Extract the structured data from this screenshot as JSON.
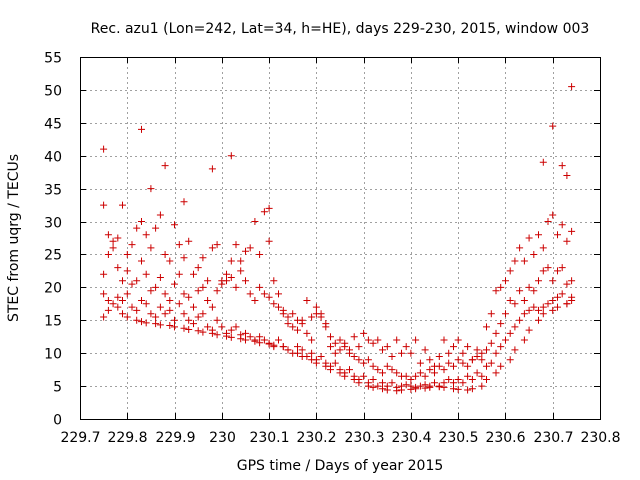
{
  "chart_data": {
    "type": "scatter",
    "title": "Rec. azu1 (Lon=242, Lat=34, h=HE), days 229-230, 2015, window 003",
    "xlabel": "GPS time / Days of year 2015",
    "ylabel": "STEC from uqrg / TECUs",
    "xlim": [
      229.7,
      230.8
    ],
    "ylim": [
      0,
      55
    ],
    "xticks": [
      "229.7",
      "229.8",
      "229.9",
      "230",
      "230.1",
      "230.2",
      "230.3",
      "230.4",
      "230.5",
      "230.6",
      "230.7",
      "230.8"
    ],
    "yticks": [
      "0",
      "5",
      "10",
      "15",
      "20",
      "25",
      "30",
      "35",
      "40",
      "45",
      "50",
      "55"
    ],
    "grid": true,
    "marker": "+",
    "color": "#cc0000",
    "series": [
      {
        "x": [
          229.75,
          229.76,
          229.78,
          229.79,
          229.8,
          229.82,
          229.83,
          229.84,
          229.86,
          229.87,
          229.89,
          229.9,
          229.92,
          229.93,
          229.95,
          229.96,
          229.98,
          229.99,
          230.01,
          230.02,
          230.04,
          230.05,
          230.07,
          230.08,
          230.1,
          230.11,
          230.13,
          230.14,
          230.16,
          230.17,
          230.19,
          230.2,
          230.22,
          230.23,
          230.25,
          230.26,
          230.28,
          230.29,
          230.31,
          230.32,
          230.34,
          230.35,
          230.37,
          230.38,
          230.4,
          230.41,
          230.43,
          230.44,
          230.46,
          230.47,
          230.49,
          230.5,
          230.52,
          230.53,
          230.55,
          230.56,
          230.58,
          230.59,
          230.61,
          230.62,
          230.64,
          230.65,
          230.67,
          230.68,
          230.7,
          230.71,
          230.73,
          230.74
        ],
        "y": [
          15.5,
          16.5,
          17,
          16,
          15.5,
          15,
          14.8,
          14.6,
          14.5,
          14.3,
          14.2,
          14,
          13.8,
          13.6,
          13.4,
          13.2,
          13,
          12.8,
          12.6,
          12.4,
          12.2,
          12,
          11.8,
          11.6,
          11.4,
          11.2,
          11,
          10.5,
          10,
          9.5,
          9,
          8.5,
          8,
          7.5,
          7,
          6.5,
          6,
          5.5,
          5,
          4.8,
          4.6,
          4.4,
          4.3,
          4.4,
          4.5,
          4.6,
          4.7,
          4.8,
          4.9,
          4.8,
          4.6,
          4.5,
          4.4,
          4.6,
          5,
          6,
          7,
          8,
          9,
          10.5,
          12,
          13.5,
          15,
          16,
          16.5,
          17,
          17.5,
          18.5
        ]
      },
      {
        "x": [
          229.75,
          229.76,
          229.77,
          229.78,
          229.79,
          229.8,
          229.81,
          229.82,
          229.83,
          229.84,
          229.85,
          229.86,
          229.87,
          229.88,
          229.89,
          229.9,
          229.91,
          229.92,
          229.93,
          229.94,
          229.95,
          229.96,
          229.97,
          229.98,
          229.99,
          230.0,
          230.01,
          230.02,
          230.03,
          230.04,
          230.05,
          230.06,
          230.07,
          230.08,
          230.09,
          230.1,
          230.11,
          230.12,
          230.13,
          230.14,
          230.15,
          230.16,
          230.17,
          230.18,
          230.19,
          230.2,
          230.21,
          230.22,
          230.23,
          230.24,
          230.25,
          230.26,
          230.27,
          230.28,
          230.29,
          230.3,
          230.31,
          230.32,
          230.33,
          230.34,
          230.35,
          230.36,
          230.37,
          230.38,
          230.39,
          230.4,
          230.41,
          230.42,
          230.43,
          230.44,
          230.45,
          230.46,
          230.47,
          230.48,
          230.49,
          230.5,
          230.51,
          230.52,
          230.53,
          230.54,
          230.55,
          230.56,
          230.57,
          230.58,
          230.59,
          230.6,
          230.61,
          230.62,
          230.63,
          230.64,
          230.65,
          230.66,
          230.67,
          230.68,
          230.69,
          230.7,
          230.71,
          230.72,
          230.73,
          230.74
        ],
        "y": [
          19,
          18,
          17.5,
          18.5,
          18,
          19,
          17,
          16.5,
          18,
          17.5,
          16,
          15.5,
          17,
          16,
          16.5,
          15,
          17.5,
          16,
          15,
          14.5,
          15.5,
          16,
          14,
          13.5,
          15,
          14,
          13,
          13.5,
          14,
          12.8,
          13,
          12.5,
          12,
          12.5,
          12,
          11.5,
          11,
          12,
          11,
          10.5,
          10,
          11,
          10.5,
          9.5,
          10,
          9,
          9.5,
          8.5,
          8,
          8.5,
          7.5,
          7,
          7.5,
          6.5,
          6,
          6.5,
          5.5,
          6,
          5,
          5.5,
          5,
          5.5,
          4.8,
          5,
          5.2,
          5,
          4.8,
          5,
          5.2,
          5,
          5.5,
          5,
          5.5,
          6,
          5.5,
          6,
          5.5,
          6.5,
          6,
          7,
          6.5,
          8,
          8.5,
          10,
          11,
          12,
          13,
          14,
          15,
          16,
          16.5,
          17,
          16.5,
          17,
          17.5,
          18,
          18.5,
          19,
          17.5,
          18
        ]
      },
      {
        "x": [
          229.75,
          229.76,
          229.77,
          229.78,
          229.79,
          229.8,
          229.81,
          229.82,
          229.83,
          229.84,
          229.85,
          229.86,
          229.87,
          229.88,
          229.89,
          229.9,
          229.91,
          229.92,
          229.93,
          229.94,
          229.95,
          229.96,
          229.97,
          229.98,
          229.99,
          230.0,
          230.01,
          230.02,
          230.03,
          230.04,
          230.05,
          230.06,
          230.07,
          230.08,
          230.09,
          230.1,
          230.11,
          230.12,
          230.13,
          230.14,
          230.15,
          230.16,
          230.17,
          230.18,
          230.19,
          230.2,
          230.21,
          230.22,
          230.23,
          230.24,
          230.25,
          230.26,
          230.27,
          230.28,
          230.29,
          230.3,
          230.31,
          230.32,
          230.33,
          230.34,
          230.35,
          230.36,
          230.37,
          230.38,
          230.39,
          230.4,
          230.41,
          230.42,
          230.43,
          230.44,
          230.45,
          230.46,
          230.47,
          230.48,
          230.49,
          230.5,
          230.51,
          230.52,
          230.53,
          230.54,
          230.55,
          230.56,
          230.57,
          230.58,
          230.59,
          230.6,
          230.61,
          230.62,
          230.63,
          230.64,
          230.65,
          230.66,
          230.67,
          230.68,
          230.69,
          230.7,
          230.71,
          230.72,
          230.73,
          230.74
        ],
        "y": [
          22,
          25,
          27,
          23,
          21,
          22.5,
          20.5,
          21,
          24,
          22,
          19.5,
          20,
          21.5,
          19,
          18,
          20.5,
          22,
          19,
          18.5,
          17,
          19.5,
          20,
          18,
          17,
          19.5,
          21,
          22,
          21.5,
          20,
          22.5,
          21,
          19,
          18,
          20,
          19,
          18.5,
          17.5,
          17,
          16.5,
          15.5,
          16,
          15,
          14.5,
          18,
          15.5,
          17,
          16,
          14,
          12.5,
          11.5,
          10.5,
          11,
          10,
          9.5,
          9,
          8.5,
          9,
          8,
          7.5,
          7,
          8,
          7.5,
          7,
          6.5,
          6.5,
          6,
          6.5,
          7,
          6.5,
          7.5,
          7,
          8,
          7.5,
          8.5,
          8,
          9,
          8.5,
          8,
          9,
          9.5,
          9,
          10.5,
          11.5,
          13,
          14.5,
          16,
          18,
          17.5,
          19.5,
          18,
          20,
          19.5,
          21,
          22.5,
          23,
          21,
          22.5,
          23,
          20.5,
          21
        ]
      },
      {
        "x": [
          229.75,
          229.76,
          229.77,
          229.78,
          229.79,
          229.8,
          229.81,
          229.82,
          229.83,
          229.84,
          229.85,
          229.86,
          229.87,
          229.88,
          229.89,
          229.9,
          229.91,
          229.92,
          229.93,
          229.94,
          229.95,
          229.96,
          229.97,
          229.98,
          229.99,
          230.0,
          230.01,
          230.02,
          230.03,
          230.04,
          230.05,
          230.06,
          230.07,
          230.08,
          230.09,
          230.1,
          230.11,
          230.12,
          230.13,
          230.14,
          230.15,
          230.16,
          230.17,
          230.18,
          230.19,
          230.2,
          230.21,
          230.22,
          230.23,
          230.24,
          230.25,
          230.26,
          230.27,
          230.28,
          230.29,
          230.3,
          230.31,
          230.32,
          230.33,
          230.34,
          230.35,
          230.36,
          230.37,
          230.38,
          230.39,
          230.4,
          230.41,
          230.42,
          230.43,
          230.44,
          230.45,
          230.46,
          230.47,
          230.48,
          230.49,
          230.5,
          230.51,
          230.52,
          230.53,
          230.54,
          230.55,
          230.56,
          230.57,
          230.58,
          230.59,
          230.6,
          230.61,
          230.62,
          230.63,
          230.64,
          230.65,
          230.66,
          230.67,
          230.68,
          230.69,
          230.7,
          230.71,
          230.72,
          230.73,
          230.74
        ],
        "y": [
          32.5,
          28,
          26,
          27.5,
          32.5,
          25,
          26.5,
          29,
          30,
          28,
          26,
          29,
          31,
          25,
          24,
          29.5,
          26.5,
          24.5,
          27,
          22,
          23,
          24.5,
          21,
          26,
          26.5,
          20.5,
          21,
          24,
          26.5,
          24,
          25.5,
          26,
          30,
          25,
          31.5,
          27,
          21,
          19,
          16,
          14.5,
          14,
          13.5,
          15,
          13,
          12,
          16,
          15.5,
          14.5,
          11,
          10,
          12,
          11.5,
          10.5,
          12.5,
          11,
          13,
          12,
          11.5,
          12,
          10.5,
          11,
          9.5,
          12,
          10,
          11,
          10,
          12,
          8.5,
          10.5,
          9,
          8,
          9.5,
          12,
          10,
          11,
          12,
          10,
          11,
          9,
          10.5,
          10,
          14,
          16,
          19.5,
          20,
          21,
          22.5,
          24,
          26,
          24,
          27.5,
          25,
          28,
          26,
          30,
          31,
          28,
          29.5,
          27,
          28.5
        ]
      },
      {
        "x": [
          229.75,
          229.83,
          229.85,
          229.88,
          229.92,
          229.98,
          230.02,
          230.1,
          230.68,
          230.7,
          230.72,
          230.73,
          230.74
        ],
        "y": [
          41,
          44,
          35,
          38.5,
          33,
          38,
          40,
          32,
          39,
          44.5,
          38.5,
          37,
          50.5
        ]
      }
    ]
  }
}
